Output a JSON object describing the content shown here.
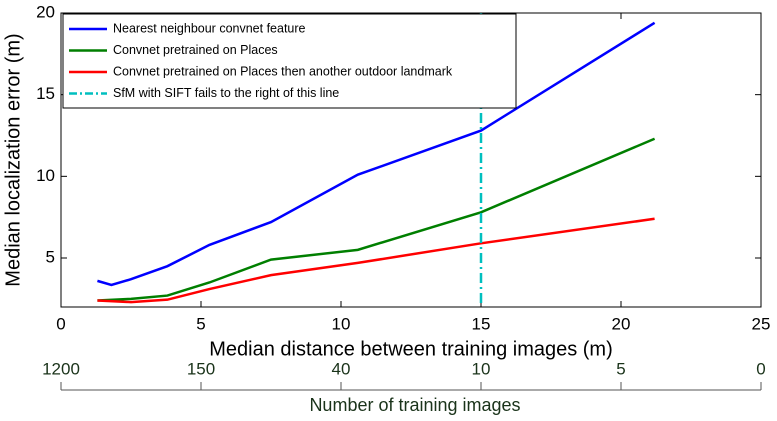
{
  "chart_data": {
    "type": "line",
    "xlabel": "Median distance between training images (m)",
    "ylabel": "Median localization error (m)",
    "xlim": [
      0,
      25
    ],
    "ylim": [
      2,
      20
    ],
    "xticks": [
      0,
      5,
      10,
      15,
      20,
      25
    ],
    "yticks": [
      5,
      10,
      15,
      20
    ],
    "series": [
      {
        "name": "Nearest neighbour convnet feature",
        "color": "#0000ff",
        "x": [
          1.3,
          1.8,
          2.5,
          3.8,
          5.3,
          7.5,
          10.6,
          15,
          21.2
        ],
        "values": [
          3.6,
          3.35,
          3.7,
          4.5,
          5.8,
          7.2,
          10.1,
          12.8,
          19.4
        ]
      },
      {
        "name": "Convnet pretrained on Places",
        "color": "#007f00",
        "x": [
          1.3,
          2.5,
          3.8,
          5.3,
          7.5,
          10.6,
          15,
          21.2
        ],
        "values": [
          2.4,
          2.5,
          2.7,
          3.5,
          4.9,
          5.5,
          7.8,
          12.3
        ]
      },
      {
        "name": "Convnet pretrained on Places then another outdoor landmark",
        "color": "#ff0000",
        "x": [
          1.3,
          2.5,
          3.8,
          5.3,
          7.5,
          10.6,
          15,
          21.2
        ],
        "values": [
          2.4,
          2.3,
          2.45,
          3.1,
          3.95,
          4.7,
          5.9,
          7.4
        ]
      }
    ],
    "vline": {
      "name": "SfM with SIFT fails to the right of this line",
      "x": 15,
      "color": "#00bfbf"
    },
    "legend": "upper left",
    "x2label": "Number of training images",
    "x2ticks": [
      {
        "value": 0,
        "label": "1200"
      },
      {
        "value": 5,
        "label": "150"
      },
      {
        "value": 10,
        "label": "40"
      },
      {
        "value": 15,
        "label": "10"
      },
      {
        "value": 20,
        "label": "5"
      },
      {
        "value": 25,
        "label": "0"
      }
    ]
  }
}
